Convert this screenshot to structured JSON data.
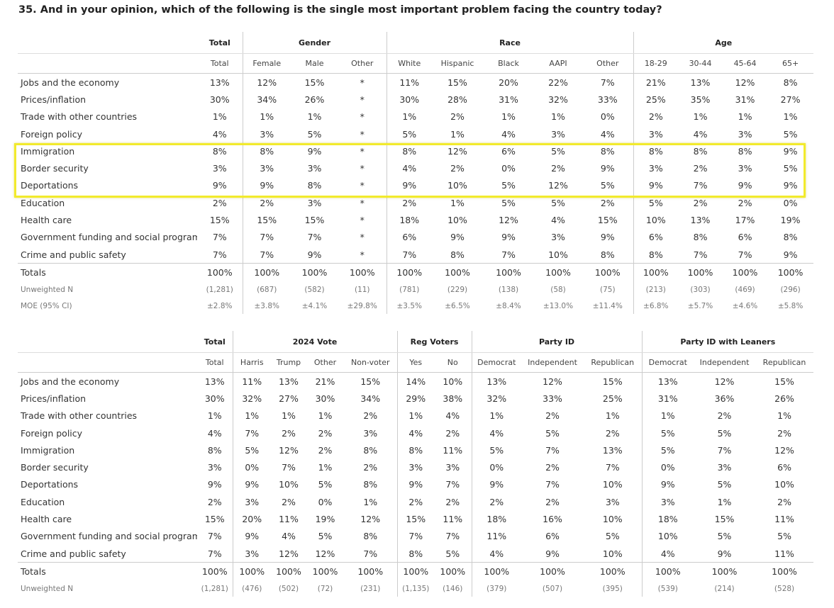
{
  "title": "35. And in your opinion, which of the following is the single most important problem facing the country today?",
  "tables": [
    {
      "groups": [
        {
          "label": "Total",
          "columns": [
            "Total"
          ]
        },
        {
          "label": "Gender",
          "columns": [
            "Female",
            "Male",
            "Other"
          ]
        },
        {
          "label": "Race",
          "columns": [
            "White",
            "Hispanic",
            "Black",
            "AAPI",
            "Other"
          ]
        },
        {
          "label": "Age",
          "columns": [
            "18-29",
            "30-44",
            "45-64",
            "65+"
          ]
        }
      ],
      "rows": [
        {
          "label": "Jobs and the economy",
          "cells": [
            "13%",
            "12%",
            "15%",
            "*",
            "11%",
            "15%",
            "20%",
            "22%",
            "7%",
            "21%",
            "13%",
            "12%",
            "8%"
          ]
        },
        {
          "label": "Prices/inflation",
          "cells": [
            "30%",
            "34%",
            "26%",
            "*",
            "30%",
            "28%",
            "31%",
            "32%",
            "33%",
            "25%",
            "35%",
            "31%",
            "27%"
          ]
        },
        {
          "label": "Trade with other countries",
          "cells": [
            "1%",
            "1%",
            "1%",
            "*",
            "1%",
            "2%",
            "1%",
            "1%",
            "0%",
            "2%",
            "1%",
            "1%",
            "1%"
          ]
        },
        {
          "label": "Foreign policy",
          "cells": [
            "4%",
            "3%",
            "5%",
            "*",
            "5%",
            "1%",
            "4%",
            "3%",
            "4%",
            "3%",
            "4%",
            "3%",
            "5%"
          ]
        },
        {
          "label": "Immigration",
          "cells": [
            "8%",
            "8%",
            "9%",
            "*",
            "8%",
            "12%",
            "6%",
            "5%",
            "8%",
            "8%",
            "8%",
            "8%",
            "9%"
          ]
        },
        {
          "label": "Border security",
          "cells": [
            "3%",
            "3%",
            "3%",
            "*",
            "4%",
            "2%",
            "0%",
            "2%",
            "9%",
            "3%",
            "2%",
            "3%",
            "5%"
          ]
        },
        {
          "label": "Deportations",
          "cells": [
            "9%",
            "9%",
            "8%",
            "*",
            "9%",
            "10%",
            "5%",
            "12%",
            "5%",
            "9%",
            "7%",
            "9%",
            "9%"
          ]
        },
        {
          "label": "Education",
          "cells": [
            "2%",
            "2%",
            "3%",
            "*",
            "2%",
            "1%",
            "5%",
            "5%",
            "2%",
            "5%",
            "2%",
            "2%",
            "0%"
          ]
        },
        {
          "label": "Health care",
          "cells": [
            "15%",
            "15%",
            "15%",
            "*",
            "18%",
            "10%",
            "12%",
            "4%",
            "15%",
            "10%",
            "13%",
            "17%",
            "19%"
          ]
        },
        {
          "label": "Government funding and social programs",
          "cells": [
            "7%",
            "7%",
            "7%",
            "*",
            "6%",
            "9%",
            "9%",
            "3%",
            "9%",
            "6%",
            "8%",
            "6%",
            "8%"
          ]
        },
        {
          "label": "Crime and public safety",
          "cells": [
            "7%",
            "7%",
            "9%",
            "*",
            "7%",
            "8%",
            "7%",
            "10%",
            "8%",
            "8%",
            "7%",
            "7%",
            "9%"
          ]
        }
      ],
      "summary_rows": [
        {
          "label": "Totals",
          "cells": [
            "100%",
            "100%",
            "100%",
            "100%",
            "100%",
            "100%",
            "100%",
            "100%",
            "100%",
            "100%",
            "100%",
            "100%",
            "100%"
          ]
        },
        {
          "label": "Unweighted N",
          "cells": [
            "(1,281)",
            "(687)",
            "(582)",
            "(11)",
            "(781)",
            "(229)",
            "(138)",
            "(58)",
            "(75)",
            "(213)",
            "(303)",
            "(469)",
            "(296)"
          ]
        },
        {
          "label": "MOE (95% CI)",
          "cells": [
            "±2.8%",
            "±3.8%",
            "±4.1%",
            "±29.8%",
            "±3.5%",
            "±6.5%",
            "±8.4%",
            "±13.0%",
            "±11.4%",
            "±6.8%",
            "±5.7%",
            "±4.6%",
            "±5.8%"
          ]
        }
      ]
    },
    {
      "groups": [
        {
          "label": "Total",
          "columns": [
            "Total"
          ]
        },
        {
          "label": "2024 Vote",
          "columns": [
            "Harris",
            "Trump",
            "Other",
            "Non-voter"
          ]
        },
        {
          "label": "Reg Voters",
          "columns": [
            "Yes",
            "No"
          ]
        },
        {
          "label": "Party ID",
          "columns": [
            "Democrat",
            "Independent",
            "Republican"
          ]
        },
        {
          "label": "Party ID with Leaners",
          "columns": [
            "Democrat",
            "Independent",
            "Republican"
          ]
        }
      ],
      "rows": [
        {
          "label": "Jobs and the economy",
          "cells": [
            "13%",
            "11%",
            "13%",
            "21%",
            "15%",
            "14%",
            "10%",
            "13%",
            "12%",
            "15%",
            "13%",
            "12%",
            "15%"
          ]
        },
        {
          "label": "Prices/inflation",
          "cells": [
            "30%",
            "32%",
            "27%",
            "30%",
            "34%",
            "29%",
            "38%",
            "32%",
            "33%",
            "25%",
            "31%",
            "36%",
            "26%"
          ]
        },
        {
          "label": "Trade with other countries",
          "cells": [
            "1%",
            "1%",
            "1%",
            "1%",
            "2%",
            "1%",
            "4%",
            "1%",
            "2%",
            "1%",
            "1%",
            "2%",
            "1%"
          ]
        },
        {
          "label": "Foreign policy",
          "cells": [
            "4%",
            "7%",
            "2%",
            "2%",
            "3%",
            "4%",
            "2%",
            "4%",
            "5%",
            "2%",
            "5%",
            "5%",
            "2%"
          ]
        },
        {
          "label": "Immigration",
          "cells": [
            "8%",
            "5%",
            "12%",
            "2%",
            "8%",
            "8%",
            "11%",
            "5%",
            "7%",
            "13%",
            "5%",
            "7%",
            "12%"
          ]
        },
        {
          "label": "Border security",
          "cells": [
            "3%",
            "0%",
            "7%",
            "1%",
            "2%",
            "3%",
            "3%",
            "0%",
            "2%",
            "7%",
            "0%",
            "3%",
            "6%"
          ]
        },
        {
          "label": "Deportations",
          "cells": [
            "9%",
            "9%",
            "10%",
            "5%",
            "8%",
            "9%",
            "7%",
            "9%",
            "7%",
            "10%",
            "9%",
            "5%",
            "10%"
          ]
        },
        {
          "label": "Education",
          "cells": [
            "2%",
            "3%",
            "2%",
            "0%",
            "1%",
            "2%",
            "2%",
            "2%",
            "2%",
            "3%",
            "3%",
            "1%",
            "2%"
          ]
        },
        {
          "label": "Health care",
          "cells": [
            "15%",
            "20%",
            "11%",
            "19%",
            "12%",
            "15%",
            "11%",
            "18%",
            "16%",
            "10%",
            "18%",
            "15%",
            "11%"
          ]
        },
        {
          "label": "Government funding and social programs",
          "cells": [
            "7%",
            "9%",
            "4%",
            "5%",
            "8%",
            "7%",
            "7%",
            "11%",
            "6%",
            "5%",
            "10%",
            "5%",
            "5%"
          ]
        },
        {
          "label": "Crime and public safety",
          "cells": [
            "7%",
            "3%",
            "12%",
            "12%",
            "7%",
            "8%",
            "5%",
            "4%",
            "9%",
            "10%",
            "4%",
            "9%",
            "11%"
          ]
        }
      ],
      "summary_rows": [
        {
          "label": "Totals",
          "cells": [
            "100%",
            "100%",
            "100%",
            "100%",
            "100%",
            "100%",
            "100%",
            "100%",
            "100%",
            "100%",
            "100%",
            "100%",
            "100%"
          ]
        },
        {
          "label": "Unweighted N",
          "cells": [
            "(1,281)",
            "(476)",
            "(502)",
            "(72)",
            "(231)",
            "(1,135)",
            "(146)",
            "(379)",
            "(507)",
            "(395)",
            "(539)",
            "(214)",
            "(528)"
          ]
        }
      ]
    }
  ]
}
